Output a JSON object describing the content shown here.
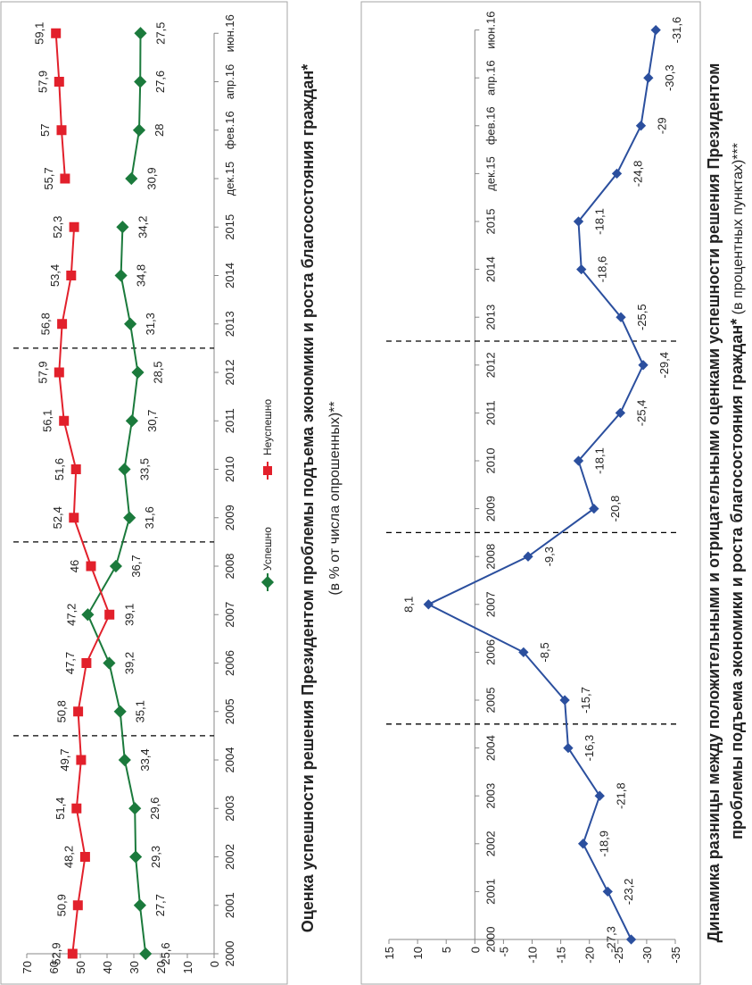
{
  "chart_data": [
    {
      "type": "line",
      "title": "Оценка успешности решения Президентом проблемы подъема экономики и роста благосостояния граждан*",
      "subtitle": "(в % от числа опрошенных)**",
      "categories": [
        "2000",
        "2001",
        "2002",
        "2003",
        "2004",
        "2005",
        "2006",
        "2007",
        "2008",
        "2009",
        "2010",
        "2011",
        "2012",
        "2013",
        "2014",
        "2015",
        "дек.15",
        "фев.16",
        "апр.16",
        "июн.16"
      ],
      "yticks": [
        0,
        10,
        20,
        30,
        40,
        50,
        60,
        70
      ],
      "ylim": [
        0,
        70
      ],
      "line_break_after_category": "2015",
      "separators_after_categories": [
        "2004",
        "2008",
        "2012"
      ],
      "legend_position": "bottom",
      "series": [
        {
          "name": "Успешно",
          "color": "#1b7a3c",
          "marker": "diamond",
          "values": [
            25.6,
            27.7,
            29.3,
            29.6,
            33.4,
            35.1,
            39.2,
            47.2,
            36.7,
            31.6,
            33.5,
            30.7,
            28.5,
            31.3,
            34.8,
            34.2,
            30.9,
            28,
            27.6,
            27.5
          ]
        },
        {
          "name": "Неуспешно",
          "color": "#e2202b",
          "marker": "square",
          "values": [
            52.9,
            50.9,
            48.2,
            51.4,
            49.7,
            50.8,
            47.7,
            39.1,
            46,
            52.4,
            51.6,
            56.1,
            57.9,
            56.8,
            53.4,
            52.3,
            55.7,
            57,
            57.9,
            59.1
          ]
        }
      ]
    },
    {
      "type": "line",
      "title_bold_line1": "Динамика разницы между положительными и отрицательными оценками успешности решения Президентом",
      "title_bold_line2": "проблемы подъема экономики и роста благосостояния граждан*",
      "title_unit": " (в процентных пунктах)***",
      "categories": [
        "2000",
        "2001",
        "2002",
        "2003",
        "2004",
        "2005",
        "2006",
        "2007",
        "2008",
        "2009",
        "2010",
        "2011",
        "2012",
        "2013",
        "2014",
        "2015",
        "дек.15",
        "фев.16",
        "апр.16",
        "июн.16"
      ],
      "yticks": [
        15,
        10,
        5,
        0,
        -5,
        -10,
        -15,
        -20,
        -25,
        -30,
        -35
      ],
      "ylim": [
        -35,
        15
      ],
      "separators_after_categories": [
        "2004",
        "2008",
        "2012"
      ],
      "series": [
        {
          "color": "#2b4f9e",
          "marker": "diamond",
          "values": [
            -27.3,
            -23.2,
            -18.9,
            -21.8,
            -16.3,
            -15.7,
            -8.5,
            8.1,
            -9.3,
            -20.8,
            -18.1,
            -25.4,
            -29.4,
            -25.5,
            -18.6,
            -18.1,
            -24.8,
            -29,
            -30.3,
            -31.6
          ]
        }
      ]
    }
  ]
}
